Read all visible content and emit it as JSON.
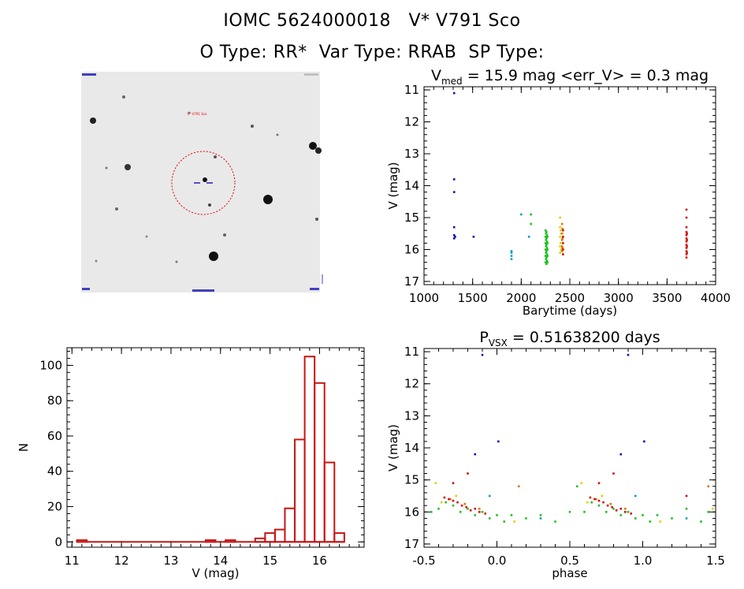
{
  "header": {
    "line1": "IOMC 5624000018   V* V791 Sco",
    "line2": "O Type: RR*  Var Type: RRAB  SP Type:"
  },
  "finder": {
    "circle_color": "#e00000",
    "marker_color": "#2020c0",
    "small_label": "V* V791 Sco"
  },
  "chart_data": [
    {
      "type": "scatter",
      "name": "light-curve",
      "title_prefix": "V",
      "title_sub": "med",
      "title_rest": " = 15.9 mag <err_V> = 0.3 mag",
      "xlabel": "Barytime (days)",
      "ylabel": "V (mag)",
      "xlim": [
        1000,
        4000
      ],
      "ylim": [
        17.1,
        10.9
      ],
      "xticks": [
        1000,
        1500,
        2000,
        2500,
        3000,
        3500,
        4000
      ],
      "yticks": [
        11,
        12,
        13,
        14,
        15,
        16,
        17
      ],
      "series": [
        {
          "name": "epoch-1",
          "color": "#1010b0",
          "points": [
            [
              1310,
              11.1
            ],
            [
              1310,
              13.8
            ],
            [
              1310,
              14.2
            ],
            [
              1310,
              15.3
            ],
            [
              1310,
              15.55
            ],
            [
              1310,
              15.65
            ],
            [
              1320,
              15.6
            ],
            [
              1510,
              15.6
            ]
          ]
        },
        {
          "name": "epoch-2",
          "color": "#00a0c0",
          "points": [
            [
              1900,
              16.1
            ],
            [
              1900,
              16.2
            ],
            [
              1900,
              16.3
            ],
            [
              1900,
              16.05
            ],
            [
              2000,
              14.9
            ],
            [
              2080,
              15.6
            ]
          ]
        },
        {
          "name": "epoch-3",
          "color": "#20c020",
          "points": [
            [
              2100,
              14.9
            ],
            [
              2100,
              15.2
            ],
            [
              2250,
              15.4
            ],
            [
              2250,
              15.6
            ],
            [
              2250,
              15.8
            ],
            [
              2250,
              16.0
            ],
            [
              2250,
              16.2
            ],
            [
              2250,
              16.4
            ],
            [
              2255,
              15.5
            ],
            [
              2255,
              15.7
            ],
            [
              2255,
              15.9
            ],
            [
              2255,
              16.1
            ],
            [
              2255,
              16.3
            ],
            [
              2260,
              15.45
            ],
            [
              2260,
              15.65
            ],
            [
              2260,
              15.85
            ],
            [
              2260,
              16.05
            ],
            [
              2260,
              16.25
            ],
            [
              2260,
              16.45
            ],
            [
              2265,
              15.55
            ],
            [
              2265,
              15.75
            ],
            [
              2265,
              15.95
            ],
            [
              2265,
              16.15
            ],
            [
              2265,
              16.35
            ],
            [
              2270,
              15.6
            ],
            [
              2270,
              15.8
            ],
            [
              2270,
              16.0
            ],
            [
              2270,
              16.2
            ],
            [
              2270,
              16.4
            ]
          ]
        },
        {
          "name": "epoch-4",
          "color": "#e0d000",
          "points": [
            [
              2400,
              15.0
            ],
            [
              2400,
              15.3
            ],
            [
              2400,
              15.6
            ],
            [
              2400,
              15.9
            ],
            [
              2400,
              16.1
            ],
            [
              2405,
              15.4
            ],
            [
              2405,
              15.8
            ],
            [
              2410,
              15.5
            ],
            [
              2410,
              16.0
            ]
          ]
        },
        {
          "name": "epoch-5",
          "color": "#e07000",
          "points": [
            [
              2420,
              15.2
            ],
            [
              2420,
              15.5
            ],
            [
              2420,
              15.7
            ],
            [
              2420,
              15.9
            ],
            [
              2420,
              16.05
            ],
            [
              2425,
              15.35
            ],
            [
              2425,
              15.65
            ],
            [
              2425,
              15.95
            ]
          ]
        },
        {
          "name": "epoch-6",
          "color": "#d01010",
          "points": [
            [
              2430,
              15.4
            ],
            [
              2430,
              15.6
            ],
            [
              2430,
              15.8
            ],
            [
              2430,
              16.0
            ],
            [
              2430,
              16.15
            ],
            [
              3700,
              14.75
            ],
            [
              3700,
              15.0
            ],
            [
              3700,
              15.3
            ],
            [
              3700,
              15.45
            ],
            [
              3700,
              15.55
            ],
            [
              3700,
              15.65
            ],
            [
              3700,
              15.75
            ],
            [
              3700,
              15.85
            ],
            [
              3700,
              15.95
            ],
            [
              3700,
              16.05
            ],
            [
              3700,
              16.15
            ],
            [
              3700,
              16.25
            ],
            [
              3705,
              15.5
            ],
            [
              3705,
              15.7
            ],
            [
              3705,
              15.9
            ],
            [
              3705,
              16.1
            ]
          ]
        }
      ]
    },
    {
      "type": "bar",
      "name": "histogram",
      "title": "",
      "xlabel": "V (mag)",
      "ylabel": "N",
      "xlim": [
        10.9,
        16.9
      ],
      "ylim": [
        -3,
        110
      ],
      "xticks": [
        11,
        12,
        13,
        14,
        15,
        16
      ],
      "yticks": [
        0,
        20,
        40,
        60,
        80,
        100
      ],
      "bin_width": 0.2,
      "bins": [
        [
          11.1,
          1
        ],
        [
          13.7,
          1
        ],
        [
          14.1,
          1
        ],
        [
          14.7,
          2
        ],
        [
          14.9,
          5
        ],
        [
          15.1,
          7
        ],
        [
          15.3,
          19
        ],
        [
          15.5,
          58
        ],
        [
          15.7,
          105
        ],
        [
          15.9,
          90
        ],
        [
          16.1,
          45
        ],
        [
          16.3,
          5
        ]
      ],
      "color": "#c81414"
    },
    {
      "type": "scatter",
      "name": "phase-plot",
      "title_prefix": "P",
      "title_sub": "VSX",
      "title_rest": " = 0.51638200 days",
      "xlabel": "phase",
      "ylabel": "V (mag)",
      "xlim": [
        -0.5,
        1.5
      ],
      "ylim": [
        17.1,
        10.9
      ],
      "xticks": [
        -0.5,
        0.0,
        0.5,
        1.0,
        1.5
      ],
      "xtick_labels": [
        "-0.5",
        "0.0",
        "0.5",
        "1.0",
        "1.5"
      ],
      "yticks": [
        11,
        12,
        13,
        14,
        15,
        16,
        17
      ],
      "series": [
        {
          "name": "blue",
          "color": "#1010b0",
          "points": [
            [
              -0.1,
              11.1
            ],
            [
              0.9,
              11.1
            ],
            [
              -0.15,
              14.2
            ],
            [
              0.85,
              14.2
            ],
            [
              0.01,
              13.8
            ],
            [
              1.01,
              13.8
            ]
          ]
        },
        {
          "name": "cyan",
          "color": "#00a0c0",
          "points": [
            [
              -0.05,
              15.5
            ],
            [
              0.95,
              15.5
            ],
            [
              0.3,
              16.2
            ],
            [
              1.3,
              16.2
            ]
          ]
        },
        {
          "name": "green",
          "color": "#20c020",
          "points": [
            [
              -0.45,
              16.0
            ],
            [
              -0.4,
              15.9
            ],
            [
              -0.35,
              15.7
            ],
            [
              -0.3,
              15.8
            ],
            [
              -0.25,
              16.0
            ],
            [
              -0.2,
              15.9
            ],
            [
              -0.15,
              16.1
            ],
            [
              -0.1,
              16.0
            ],
            [
              -0.05,
              16.2
            ],
            [
              0.0,
              16.1
            ],
            [
              0.05,
              16.3
            ],
            [
              0.1,
              16.1
            ],
            [
              0.2,
              16.2
            ],
            [
              0.3,
              16.1
            ],
            [
              0.4,
              16.3
            ],
            [
              0.5,
              16.0
            ],
            [
              0.55,
              15.2
            ],
            [
              0.6,
              16.0
            ],
            [
              0.65,
              15.7
            ],
            [
              0.7,
              15.8
            ],
            [
              0.75,
              16.0
            ],
            [
              0.8,
              15.9
            ],
            [
              0.85,
              16.1
            ],
            [
              0.9,
              16.0
            ],
            [
              0.95,
              16.2
            ],
            [
              1.0,
              16.1
            ],
            [
              1.05,
              16.3
            ],
            [
              1.1,
              16.1
            ],
            [
              1.2,
              16.2
            ],
            [
              1.3,
              15.9
            ],
            [
              1.4,
              16.3
            ],
            [
              1.45,
              16.0
            ]
          ]
        },
        {
          "name": "yellow",
          "color": "#e0d000",
          "points": [
            [
              -0.42,
              15.1
            ],
            [
              -0.38,
              15.7
            ],
            [
              -0.28,
              15.5
            ],
            [
              0.12,
              16.3
            ],
            [
              0.58,
              15.1
            ],
            [
              0.62,
              15.7
            ],
            [
              0.72,
              15.5
            ],
            [
              1.12,
              16.3
            ],
            [
              1.48,
              15.9
            ]
          ]
        },
        {
          "name": "orange",
          "color": "#e07000",
          "points": [
            [
              -0.32,
              15.6
            ],
            [
              -0.22,
              15.75
            ],
            [
              -0.12,
              15.9
            ],
            [
              0.68,
              15.6
            ],
            [
              0.78,
              15.75
            ],
            [
              0.88,
              15.9
            ],
            [
              0.15,
              15.2
            ],
            [
              1.45,
              15.2
            ]
          ]
        },
        {
          "name": "red",
          "color": "#d01010",
          "points": [
            [
              -0.36,
              15.55
            ],
            [
              -0.33,
              15.6
            ],
            [
              -0.3,
              15.65
            ],
            [
              -0.27,
              15.7
            ],
            [
              -0.24,
              15.8
            ],
            [
              -0.21,
              15.85
            ],
            [
              -0.18,
              15.95
            ],
            [
              -0.15,
              15.9
            ],
            [
              -0.12,
              16.0
            ],
            [
              -0.08,
              16.05
            ],
            [
              -0.3,
              15.1
            ],
            [
              -0.2,
              14.8
            ],
            [
              0.64,
              15.55
            ],
            [
              0.67,
              15.6
            ],
            [
              0.7,
              15.65
            ],
            [
              0.73,
              15.7
            ],
            [
              0.76,
              15.8
            ],
            [
              0.79,
              15.85
            ],
            [
              0.82,
              15.95
            ],
            [
              0.85,
              15.9
            ],
            [
              0.88,
              16.0
            ],
            [
              0.92,
              16.05
            ],
            [
              0.7,
              15.1
            ],
            [
              0.8,
              14.8
            ],
            [
              1.3,
              15.5
            ]
          ]
        }
      ]
    }
  ]
}
